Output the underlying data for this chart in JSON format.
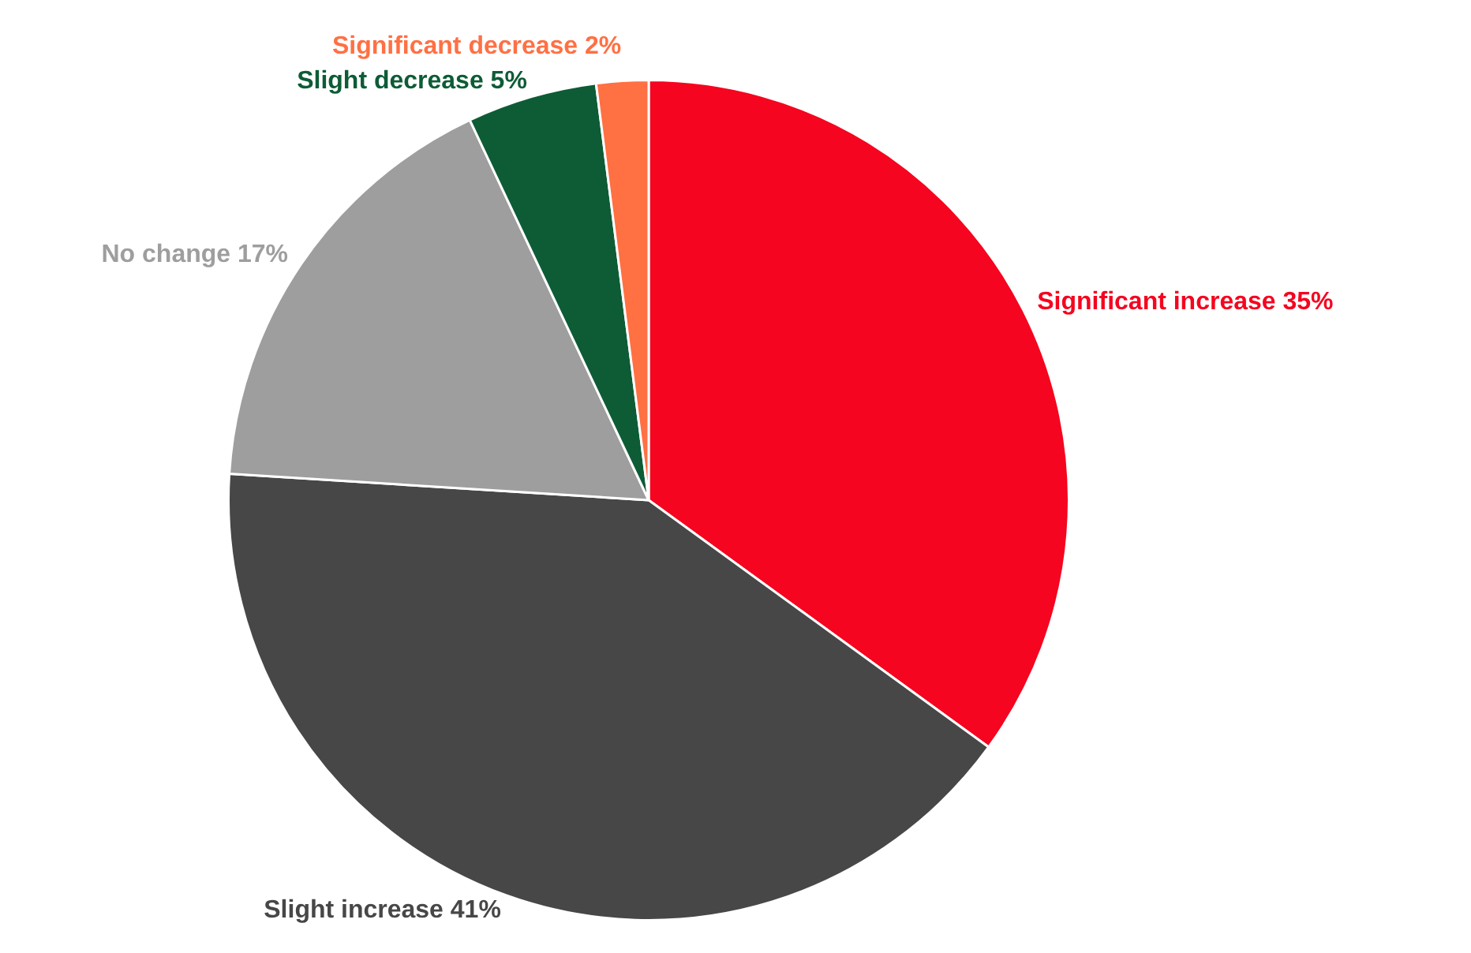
{
  "chart_data": {
    "type": "pie",
    "categories": [
      "Significant increase",
      "Slight increase",
      "No change",
      "Slight decrease",
      "Significant decrease"
    ],
    "values": [
      35,
      41,
      17,
      5,
      2
    ],
    "colors": [
      "#f5051f",
      "#474747",
      "#9e9e9e",
      "#0d5c36",
      "#ff7043"
    ],
    "value_labels": [
      "35%",
      "41%",
      "17%",
      "5%",
      "2%"
    ],
    "legend": false
  }
}
